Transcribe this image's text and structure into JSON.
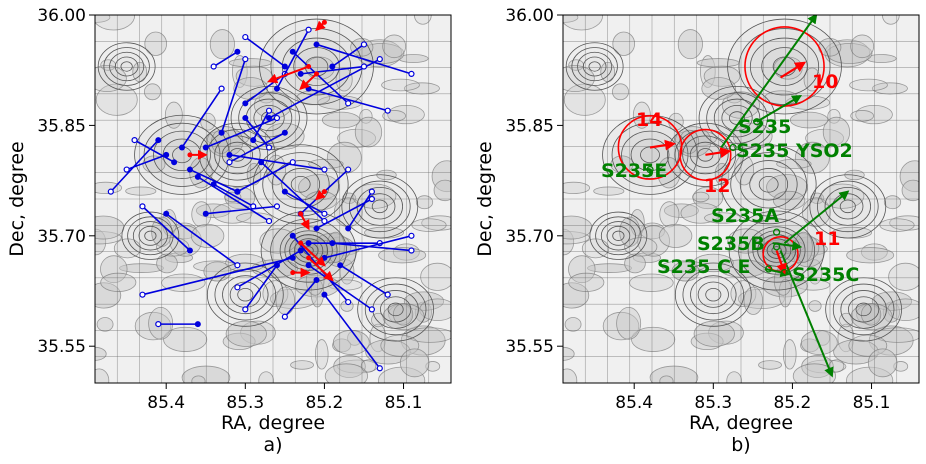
{
  "chart_data": [
    {
      "type": "scatter",
      "panel_label": "a)",
      "xlabel": "RA, degree",
      "ylabel": "Dec, degree",
      "xlim": [
        85.49,
        85.04
      ],
      "ylim": [
        35.5,
        36.0
      ],
      "x_ticks": [
        "85.4",
        "85.3",
        "85.2",
        "85.1"
      ],
      "y_ticks": [
        "36.00",
        "35.85",
        "35.70",
        "35.55"
      ],
      "background": "grayscale contour map",
      "grid": true,
      "blue_vectors": [
        [
          85.41,
          35.83,
          85.47,
          35.76
        ],
        [
          85.4,
          35.81,
          85.45,
          35.79
        ],
        [
          85.39,
          35.8,
          85.44,
          35.83
        ],
        [
          85.38,
          35.82,
          85.33,
          35.9
        ],
        [
          85.37,
          35.79,
          85.31,
          35.76
        ],
        [
          85.36,
          35.78,
          85.27,
          35.72
        ],
        [
          85.35,
          35.82,
          85.26,
          35.86
        ],
        [
          85.34,
          35.77,
          85.29,
          35.74
        ],
        [
          85.33,
          35.84,
          85.3,
          35.94
        ],
        [
          85.32,
          35.81,
          85.2,
          35.79
        ],
        [
          85.31,
          35.76,
          85.24,
          35.8
        ],
        [
          85.3,
          35.88,
          85.25,
          35.92
        ],
        [
          85.29,
          35.83,
          85.27,
          35.87
        ],
        [
          85.28,
          35.8,
          85.2,
          35.72
        ],
        [
          85.27,
          35.86,
          85.13,
          35.94
        ],
        [
          85.26,
          35.9,
          85.22,
          35.98
        ],
        [
          85.25,
          35.93,
          85.3,
          35.97
        ],
        [
          85.24,
          35.95,
          85.17,
          35.88
        ],
        [
          85.23,
          35.92,
          85.15,
          35.93
        ],
        [
          85.22,
          35.9,
          85.12,
          35.87
        ],
        [
          85.21,
          35.96,
          85.09,
          35.92
        ],
        [
          85.35,
          35.73,
          85.26,
          35.74
        ],
        [
          85.4,
          35.73,
          85.31,
          35.66
        ],
        [
          85.37,
          35.68,
          85.43,
          35.74
        ],
        [
          85.25,
          35.76,
          85.2,
          35.73
        ],
        [
          85.23,
          35.73,
          85.17,
          35.79
        ],
        [
          85.24,
          35.7,
          85.17,
          35.61
        ],
        [
          85.22,
          35.69,
          85.13,
          35.69
        ],
        [
          85.21,
          35.71,
          85.14,
          35.75
        ],
        [
          85.23,
          35.68,
          85.31,
          35.63
        ],
        [
          85.24,
          35.67,
          85.43,
          35.62
        ],
        [
          85.22,
          35.66,
          85.14,
          35.6
        ],
        [
          85.2,
          35.67,
          85.09,
          35.7
        ],
        [
          85.19,
          35.69,
          85.09,
          35.68
        ],
        [
          85.21,
          35.64,
          85.25,
          35.59
        ],
        [
          85.18,
          35.66,
          85.12,
          35.62
        ],
        [
          85.26,
          35.66,
          85.3,
          35.6
        ],
        [
          85.17,
          35.71,
          85.14,
          35.76
        ],
        [
          85.36,
          35.58,
          85.41,
          35.58
        ],
        [
          85.2,
          35.62,
          85.13,
          35.52
        ],
        [
          85.25,
          35.84,
          85.32,
          35.8
        ],
        [
          85.31,
          35.95,
          85.34,
          35.93
        ],
        [
          85.19,
          35.93,
          85.15,
          35.96
        ],
        [
          85.3,
          35.86,
          85.27,
          35.82
        ]
      ],
      "red_vectors": [
        [
          85.37,
          35.81,
          85.35,
          35.81
        ],
        [
          85.22,
          35.93,
          85.27,
          35.91
        ],
        [
          85.21,
          35.92,
          85.23,
          35.9
        ],
        [
          85.23,
          35.69,
          85.2,
          35.66
        ],
        [
          85.22,
          35.67,
          85.19,
          35.64
        ],
        [
          85.23,
          35.73,
          85.22,
          35.71
        ],
        [
          85.2,
          35.76,
          85.21,
          35.75
        ],
        [
          85.2,
          35.99,
          85.21,
          35.98
        ],
        [
          85.24,
          35.65,
          85.22,
          35.65
        ]
      ]
    },
    {
      "type": "scatter",
      "panel_label": "b)",
      "xlabel": "RA, degree",
      "ylabel": "Dec, degree",
      "xlim": [
        85.49,
        85.04
      ],
      "ylim": [
        35.5,
        36.0
      ],
      "x_ticks": [
        "85.4",
        "85.3",
        "85.2",
        "85.1"
      ],
      "y_ticks": [
        "36.00",
        "35.85",
        "35.70",
        "35.55"
      ],
      "background": "grayscale contour map",
      "grid": true,
      "circles": [
        {
          "label": "10",
          "ra": 85.21,
          "dec": 35.93,
          "r_deg": 0.05
        },
        {
          "label": "14",
          "ra": 85.38,
          "dec": 35.82,
          "r_deg": 0.04
        },
        {
          "label": "12",
          "ra": 85.31,
          "dec": 35.81,
          "r_deg": 0.032
        },
        {
          "label": "11",
          "ra": 85.215,
          "dec": 35.675,
          "r_deg": 0.022
        }
      ],
      "red_labels": [
        "10",
        "14",
        "12",
        "11"
      ],
      "sources": [
        {
          "name": "S235",
          "ra": 85.245,
          "dec": 35.855
        },
        {
          "name": "S235 YSO2",
          "ra": 85.275,
          "dec": 35.82
        },
        {
          "name": "S235E",
          "ra": 85.38,
          "dec": 35.79
        },
        {
          "name": "S235A",
          "ra": 85.22,
          "dec": 35.705
        },
        {
          "name": "S235B",
          "ra": 85.22,
          "dec": 35.685
        },
        {
          "name": "S235 C E",
          "ra": 85.23,
          "dec": 35.655
        },
        {
          "name": "S235C",
          "ra": 85.21,
          "dec": 35.65
        }
      ],
      "green_vectors": [
        [
          85.29,
          35.82,
          85.17,
          36.0
        ],
        [
          85.245,
          35.855,
          85.19,
          35.89
        ],
        [
          85.21,
          35.69,
          85.13,
          35.76
        ],
        [
          85.215,
          35.68,
          85.15,
          35.51
        ],
        [
          85.235,
          35.655,
          85.205,
          35.648
        ],
        [
          85.225,
          35.69,
          85.19,
          35.685
        ]
      ],
      "red_vectors": [
        [
          85.215,
          35.915,
          85.185,
          35.935
        ],
        [
          85.38,
          35.82,
          85.35,
          35.825
        ],
        [
          85.31,
          35.81,
          85.28,
          35.815
        ],
        [
          85.22,
          35.68,
          85.21,
          35.65
        ]
      ]
    }
  ]
}
